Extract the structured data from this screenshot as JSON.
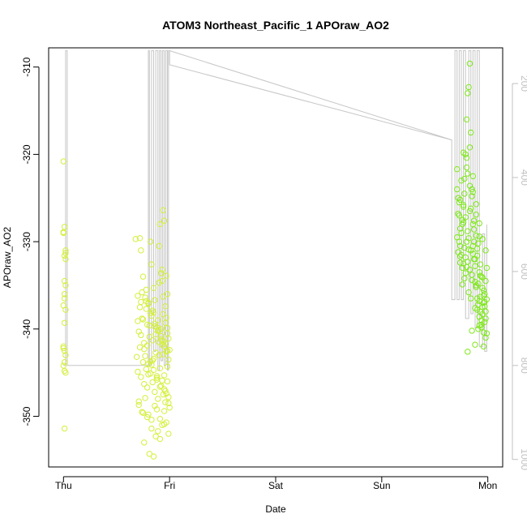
{
  "chart_data": {
    "type": "scatter",
    "title": "ATOM3 Northeast_Pacific_1 APOraw_AO2",
    "xlabel": "Date",
    "ylabel": "APOraw_AO2",
    "y2label": "",
    "grid": false,
    "legend": "none",
    "x_unit": "day index (0 = Thu)",
    "xlim": [
      -0.14,
      4.14
    ],
    "ylim": [
      -355.8,
      -307.8
    ],
    "y2lim": [
      1016,
      124
    ],
    "x_ticks": [
      {
        "value": 0,
        "label": "Thu"
      },
      {
        "value": 1,
        "label": "Fri"
      },
      {
        "value": 2,
        "label": "Sat"
      },
      {
        "value": 3,
        "label": "Sun"
      },
      {
        "value": 4,
        "label": "Mon"
      }
    ],
    "y_ticks": [
      -310,
      -320,
      -330,
      -340,
      -350
    ],
    "y_tick_labels": [
      "-310",
      "-320",
      "-330",
      "-340",
      "-350"
    ],
    "y2_ticks": [
      200,
      400,
      600,
      800,
      1000
    ],
    "y2_tick_labels": [
      "200",
      "400",
      "600",
      "800",
      "1000"
    ],
    "colors": {
      "points_early": "#d4ef3a",
      "points_late": "#7ee81a",
      "altitude_line": "#c6c6c6",
      "axis": "#000000",
      "y2_axis": "#c0c0c0"
    },
    "series": [
      {
        "kind": "points",
        "color": "#d4ef3a",
        "x": [
          0.0,
          0.01,
          0.0,
          0.02,
          0.01,
          0.02,
          0.01,
          0.02,
          0.01,
          0.0,
          0.02,
          0.01,
          0.0,
          0.01,
          0.02,
          0.0,
          0.01,
          0.02,
          0.01,
          0.0,
          0.02,
          0.01,
          0.0,
          0.01
        ],
        "y": [
          -320.8,
          -328.3,
          -328.9,
          -331.0,
          -331.6,
          -332.0,
          -334.5,
          -335.0,
          -336.5,
          -337.3,
          -337.8,
          -339.3,
          -342.0,
          -342.5,
          -343.0,
          -344.2,
          -344.8,
          -345.0,
          -351.4,
          -329.0,
          -331.3,
          -336.0,
          -342.2,
          -343.8
        ]
      },
      {
        "kind": "points",
        "color": "#d4ef3a",
        "x": [
          0.68,
          0.72,
          0.73,
          0.7,
          0.75,
          0.78,
          0.8,
          0.82,
          0.83,
          0.85,
          0.86,
          0.88,
          0.9,
          0.91,
          0.92,
          0.93,
          0.94,
          0.95,
          0.96,
          0.97,
          0.98,
          0.99,
          1.0,
          0.71,
          0.74,
          0.76,
          0.77,
          0.79,
          0.81,
          0.84,
          0.87,
          0.89,
          0.92,
          0.94,
          0.96,
          0.98,
          0.69,
          0.72,
          0.75,
          0.78,
          0.8,
          0.83,
          0.85,
          0.88,
          0.9,
          0.93,
          0.95,
          0.97,
          0.99,
          0.7,
          0.73,
          0.76,
          0.79,
          0.82,
          0.84,
          0.86,
          0.89,
          0.91,
          0.94,
          0.96,
          0.98,
          1.0,
          0.71,
          0.74,
          0.77,
          0.8,
          0.83,
          0.86,
          0.88,
          0.91,
          0.93,
          0.95,
          0.97,
          0.99,
          0.72,
          0.75,
          0.78,
          0.81,
          0.84,
          0.87,
          0.9,
          0.92,
          0.94,
          0.96,
          0.98,
          0.7,
          0.73,
          0.76,
          0.79,
          0.82,
          0.85,
          0.88,
          0.91,
          0.93,
          0.95,
          0.97,
          0.99,
          0.74,
          0.77,
          0.8,
          0.83,
          0.86,
          0.89,
          0.92,
          0.95,
          0.98,
          0.71,
          0.75,
          0.79,
          0.83,
          0.87,
          0.91,
          0.95,
          0.99,
          0.73,
          0.78,
          0.82,
          0.86,
          0.9,
          0.94,
          0.98,
          0.76,
          0.81,
          0.85,
          0.89,
          0.93,
          0.97,
          0.8,
          0.84,
          0.88,
          0.92,
          0.96,
          0.85,
          0.9,
          0.94
        ],
        "y": [
          -329.7,
          -329.6,
          -331.0,
          -336.2,
          -334.0,
          -335.5,
          -337.0,
          -330.0,
          -332.6,
          -338.1,
          -336.7,
          -339.8,
          -330.5,
          -328.0,
          -333.6,
          -334.5,
          -326.4,
          -327.6,
          -337.4,
          -338.7,
          -339.9,
          -341.1,
          -342.4,
          -340.3,
          -338.8,
          -341.6,
          -343.1,
          -339.5,
          -340.9,
          -341.3,
          -342.7,
          -339.0,
          -340.0,
          -338.3,
          -339.3,
          -336.0,
          -343.2,
          -342.1,
          -343.8,
          -344.6,
          -345.2,
          -344.1,
          -343.4,
          -345.8,
          -343.0,
          -341.8,
          -345.3,
          -342.6,
          -343.5,
          -344.9,
          -345.5,
          -346.3,
          -346.7,
          -345.1,
          -346.1,
          -347.2,
          -348.0,
          -346.6,
          -347.5,
          -348.4,
          -346.0,
          -349.0,
          -348.3,
          -349.5,
          -347.9,
          -349.8,
          -350.4,
          -348.8,
          -349.2,
          -350.3,
          -351.0,
          -349.4,
          -350.7,
          -348.5,
          -337.5,
          -338.9,
          -336.8,
          -339.6,
          -337.9,
          -340.6,
          -341.5,
          -340.8,
          -342.9,
          -341.7,
          -344.3,
          -339.1,
          -340.7,
          -342.3,
          -341.9,
          -343.7,
          -344.7,
          -345.6,
          -344.5,
          -345.9,
          -346.9,
          -347.4,
          -347.8,
          -335.8,
          -336.4,
          -337.1,
          -338.5,
          -339.7,
          -340.2,
          -341.2,
          -342.0,
          -340.5,
          -348.7,
          -349.6,
          -350.1,
          -351.4,
          -352.3,
          -352.6,
          -350.9,
          -352.0,
          -336.9,
          -337.7,
          -338.2,
          -339.4,
          -340.1,
          -341.4,
          -342.5,
          -353.0,
          -354.3,
          -354.6,
          -351.7,
          -333.2,
          -333.9,
          -344.0,
          -343.6,
          -345.4,
          -346.5,
          -347.1,
          -335.3,
          -334.7,
          -336.3
        ]
      },
      {
        "kind": "points",
        "color": "#7ee81a",
        "x": [
          3.71,
          3.72,
          3.73,
          3.74,
          3.75,
          3.76,
          3.77,
          3.78,
          3.79,
          3.8,
          3.81,
          3.82,
          3.83,
          3.84,
          3.85,
          3.86,
          3.87,
          3.88,
          3.89,
          3.9,
          3.91,
          3.92,
          3.93,
          3.94,
          3.95,
          3.96,
          3.97,
          3.98,
          3.99,
          3.72,
          3.74,
          3.76,
          3.78,
          3.8,
          3.82,
          3.84,
          3.86,
          3.88,
          3.9,
          3.92,
          3.94,
          3.96,
          3.98,
          3.71,
          3.73,
          3.75,
          3.77,
          3.79,
          3.81,
          3.83,
          3.85,
          3.87,
          3.89,
          3.91,
          3.93,
          3.95,
          3.97,
          3.99,
          3.72,
          3.74,
          3.76,
          3.78,
          3.8,
          3.82,
          3.84,
          3.86,
          3.88,
          3.9,
          3.92,
          3.94,
          3.96,
          3.98,
          3.73,
          3.75,
          3.77,
          3.79,
          3.81,
          3.83,
          3.85,
          3.87,
          3.89,
          3.91,
          3.93,
          3.95,
          3.97,
          3.71,
          3.74,
          3.77,
          3.8,
          3.83,
          3.86,
          3.89,
          3.92,
          3.95,
          3.98,
          3.76,
          3.79,
          3.82,
          3.85,
          3.88,
          3.91,
          3.94,
          3.97,
          3.78,
          3.81,
          3.84,
          3.87,
          3.9,
          3.93,
          3.96,
          3.8,
          3.83,
          3.86,
          3.89,
          3.92,
          3.95,
          3.98,
          3.74,
          3.77,
          3.81,
          3.85,
          3.88,
          3.92,
          3.96,
          3.99
        ],
        "y": [
          -324.0,
          -325.0,
          -327.0,
          -330.5,
          -329.0,
          -328.0,
          -326.0,
          -322.8,
          -320.0,
          -316.0,
          -313.0,
          -312.3,
          -309.6,
          -317.5,
          -324.0,
          -328.0,
          -330.0,
          -332.0,
          -335.2,
          -336.5,
          -337.2,
          -336.8,
          -338.0,
          -339.5,
          -338.3,
          -337.0,
          -336.0,
          -334.5,
          -333.0,
          -326.8,
          -328.5,
          -327.5,
          -330.7,
          -330.0,
          -329.6,
          -331.0,
          -330.5,
          -332.8,
          -331.6,
          -333.5,
          -334.0,
          -335.6,
          -338.8,
          -329.5,
          -330.0,
          -331.5,
          -332.5,
          -331.8,
          -332.3,
          -333.2,
          -333.8,
          -332.0,
          -335.0,
          -334.8,
          -336.3,
          -337.5,
          -339.2,
          -340.5,
          -331.2,
          -331.7,
          -333.0,
          -334.2,
          -332.9,
          -335.8,
          -336.5,
          -331.4,
          -334.6,
          -337.8,
          -338.6,
          -339.8,
          -340.4,
          -341.0,
          -325.5,
          -323.0,
          -325.8,
          -327.2,
          -328.8,
          -326.5,
          -324.8,
          -327.6,
          -329.3,
          -330.2,
          -332.6,
          -335.3,
          -336.9,
          -321.7,
          -325.2,
          -319.8,
          -321.5,
          -323.6,
          -324.3,
          -325.7,
          -327.9,
          -329.7,
          -331.0,
          -334.9,
          -333.6,
          -330.9,
          -334.4,
          -337.6,
          -340.0,
          -339.0,
          -337.4,
          -324.5,
          -322.2,
          -326.2,
          -328.6,
          -330.8,
          -333.9,
          -336.2,
          -320.4,
          -319.2,
          -322.5,
          -326.9,
          -329.4,
          -334.1,
          -338.0,
          -332.4,
          -327.8,
          -342.6,
          -340.2,
          -341.8,
          -339.6,
          -342.0,
          -336.6
        ]
      }
    ],
    "altitude_line": {
      "axis": "secondary",
      "color": "#c6c6c6",
      "x": [
        0.0,
        0.02,
        0.02,
        0.035,
        0.035,
        0.8,
        0.8,
        0.81,
        0.81,
        0.83,
        0.83,
        0.85,
        0.85,
        0.87,
        0.87,
        0.89,
        0.89,
        0.905,
        0.905,
        0.92,
        0.92,
        0.935,
        0.935,
        0.95,
        0.95,
        0.965,
        0.965,
        0.98,
        0.98,
        0.99,
        0.99,
        1.0,
        1.0,
        3.66,
        3.66,
        3.69,
        3.69,
        3.71,
        3.71,
        3.73,
        3.73,
        3.75,
        3.75,
        3.77,
        3.77,
        3.79,
        3.79,
        3.82,
        3.82,
        3.84,
        3.84,
        3.86,
        3.86,
        3.88,
        3.88,
        3.9,
        3.9,
        3.92,
        3.92,
        3.95,
        3.95,
        3.97,
        3.97,
        3.99,
        3.99
      ],
      "y": [
        800,
        800,
        130,
        130,
        800,
        800,
        130,
        130,
        800,
        800,
        130,
        130,
        770,
        770,
        130,
        130,
        810,
        810,
        130,
        130,
        790,
        790,
        130,
        130,
        800,
        800,
        130,
        130,
        810,
        810,
        130,
        130,
        160,
        320,
        660,
        660,
        130,
        130,
        660,
        660,
        130,
        130,
        660,
        660,
        130,
        130,
        700,
        700,
        130,
        130,
        690,
        690,
        130,
        130,
        720,
        720,
        130,
        130,
        760,
        760,
        520,
        520,
        770,
        770,
        500
      ]
    }
  }
}
